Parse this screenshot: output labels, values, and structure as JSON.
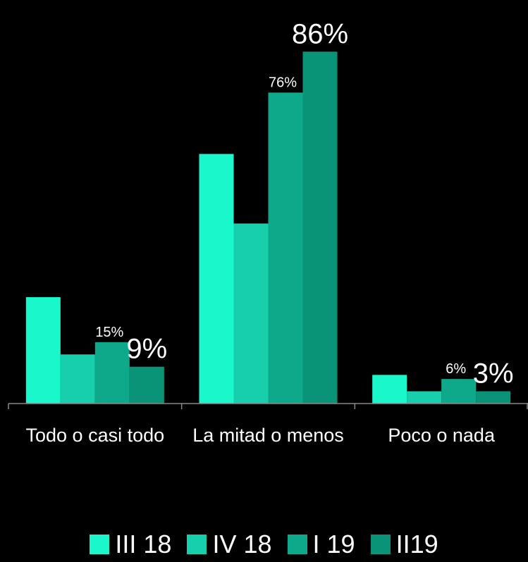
{
  "chart_data": {
    "type": "bar",
    "categories": [
      "Todo o casi todo",
      "La mitad o menos",
      "Poco o nada"
    ],
    "series": [
      {
        "name": "III 18",
        "color": "#19f7cb",
        "values": [
          26,
          61,
          7
        ]
      },
      {
        "name": "IV 18",
        "color": "#17cfac",
        "values": [
          12,
          44,
          3
        ]
      },
      {
        "name": "I 19",
        "color": "#0ea98a",
        "values": [
          15,
          76,
          6
        ],
        "value_labels": [
          "15%",
          "76%",
          "6%"
        ]
      },
      {
        "name": "II19",
        "color": "#0a9477",
        "values": [
          9,
          86,
          3
        ],
        "value_labels": [
          "9%",
          "86%",
          "3%"
        ]
      }
    ],
    "ylim": [
      0,
      90
    ]
  }
}
